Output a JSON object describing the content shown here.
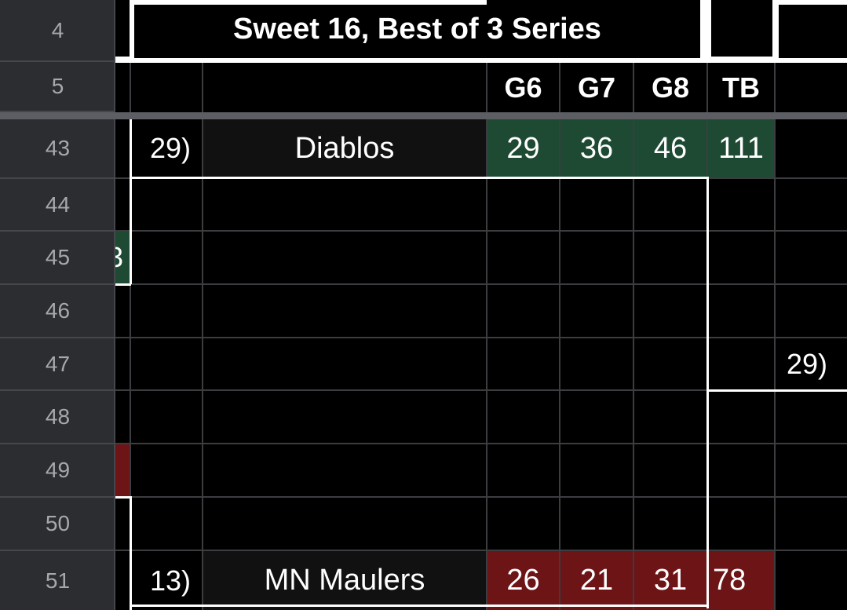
{
  "sheet": {
    "row_numbers": [
      "4",
      "5",
      "43",
      "44",
      "45",
      "46",
      "47",
      "48",
      "49",
      "50",
      "51"
    ],
    "title": "Sweet 16, Best of 3 Series",
    "column_headers": [
      "G6",
      "G7",
      "G8",
      "TB"
    ],
    "matchups": [
      {
        "seed": "29)",
        "team": "Diablos",
        "scores": [
          "29",
          "36",
          "46",
          "111"
        ],
        "status": "winner",
        "color": "#1e4a34"
      },
      {
        "seed": "13)",
        "team": "MN Maulers",
        "scores": [
          "26",
          "21",
          "31",
          "78"
        ],
        "status": "loser",
        "color": "#6c1416"
      }
    ],
    "next_round_seed": "29)",
    "partial_cell_text": "3"
  }
}
